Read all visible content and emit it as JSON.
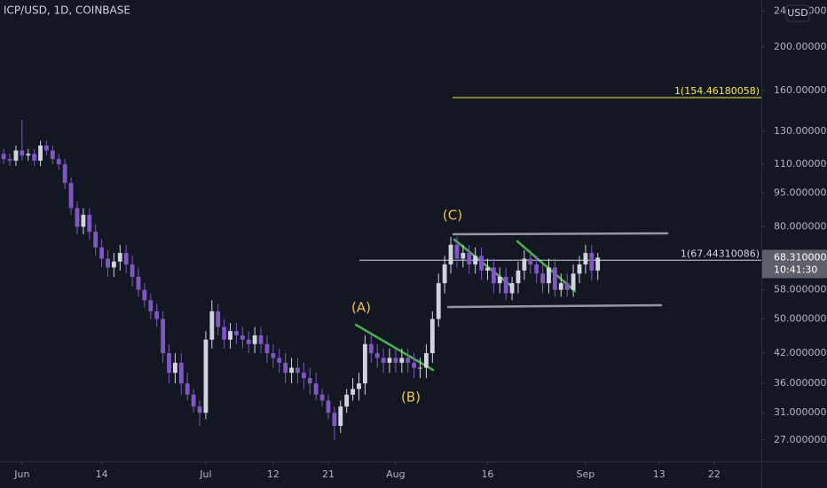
{
  "chart_data": {
    "type": "candlestick",
    "title": "ICP/USD, 1D, COINBASE",
    "currency": "USD",
    "log_scale": true,
    "up_color": "#d1d4dc",
    "down_color": "#7e57c2",
    "x": [
      -3,
      -2,
      -1,
      0,
      1,
      2,
      3,
      4,
      5,
      6,
      7,
      8,
      9,
      10,
      11,
      12,
      13,
      14,
      15,
      16,
      17,
      18,
      19,
      20,
      21,
      22,
      23,
      24,
      25,
      26,
      27,
      28,
      29,
      30,
      31,
      32,
      33,
      34,
      35,
      36,
      37,
      38,
      39,
      40,
      41,
      42,
      43,
      44,
      45,
      46,
      47,
      48,
      49,
      50,
      51,
      52,
      53,
      54,
      55,
      56,
      57,
      58,
      59,
      60,
      61,
      62,
      63,
      64,
      65,
      66,
      67,
      68,
      69,
      70,
      71,
      72,
      73,
      74,
      75,
      76,
      77,
      78,
      79,
      80,
      81,
      82,
      83,
      84,
      85,
      86,
      87,
      88,
      89,
      90,
      91,
      92,
      93,
      94
    ],
    "open": [
      116,
      113,
      112,
      118,
      115,
      116,
      112,
      121,
      118,
      113,
      110,
      100,
      88,
      80,
      85,
      78,
      72,
      68,
      65,
      67,
      70,
      66,
      62,
      58,
      55,
      52,
      50,
      42,
      38,
      40,
      36,
      34,
      32,
      31,
      45,
      52,
      48,
      45,
      47,
      46,
      45,
      44,
      46,
      44,
      42,
      41,
      40,
      38,
      39,
      38,
      37,
      36,
      34,
      33,
      31,
      29,
      32,
      34,
      35,
      36,
      44,
      42,
      41,
      40,
      41,
      40,
      41,
      40,
      39,
      39,
      42,
      50,
      60,
      66,
      73,
      68,
      70,
      66,
      69,
      64,
      65,
      60,
      62,
      57,
      60,
      64,
      68,
      66,
      63,
      60,
      65,
      58,
      60,
      58,
      63,
      66,
      70,
      64
    ],
    "high": [
      119,
      116,
      121,
      138,
      119,
      119,
      124,
      124,
      121,
      116,
      113,
      103,
      91,
      88,
      88,
      81,
      75,
      71,
      70,
      73,
      73,
      69,
      65,
      60,
      57,
      54,
      52,
      44,
      42,
      42,
      38,
      35,
      33,
      47,
      55,
      54,
      50,
      49,
      49,
      48,
      47,
      48,
      48,
      46,
      44,
      43,
      42,
      41,
      41,
      40,
      39,
      38,
      35,
      34,
      32,
      33,
      35,
      37,
      38,
      46,
      46,
      44,
      43,
      43,
      43,
      43,
      43,
      42,
      41,
      44,
      52,
      63,
      69,
      76,
      76,
      73,
      73,
      72,
      72,
      68,
      68,
      65,
      65,
      62,
      67,
      71,
      71,
      69,
      66,
      68,
      68,
      63,
      63,
      66,
      69,
      73,
      73,
      70
    ],
    "low": [
      110,
      109,
      109,
      112,
      112,
      109,
      109,
      115,
      110,
      107,
      97,
      85,
      77,
      77,
      75,
      69,
      65,
      62,
      62,
      64,
      63,
      59,
      56,
      53,
      50,
      48,
      40,
      36,
      36,
      34,
      33,
      31,
      29,
      30,
      43,
      46,
      43,
      43,
      44,
      43,
      42,
      42,
      42,
      40,
      39,
      38,
      36,
      36,
      36,
      35,
      34,
      33,
      32,
      30,
      27,
      28,
      31,
      33,
      33,
      34,
      40,
      39,
      38,
      38,
      38,
      38,
      38,
      37,
      37,
      37,
      40,
      48,
      57,
      63,
      65,
      65,
      63,
      63,
      61,
      61,
      57,
      57,
      55,
      55,
      57,
      61,
      63,
      60,
      57,
      57,
      56,
      56,
      56,
      56,
      60,
      63,
      61,
      61
    ],
    "close": [
      113,
      112,
      118,
      115,
      116,
      112,
      121,
      118,
      113,
      110,
      100,
      88,
      80,
      85,
      78,
      72,
      68,
      65,
      67,
      70,
      66,
      62,
      58,
      55,
      52,
      50,
      42,
      38,
      40,
      36,
      34,
      32,
      31,
      45,
      52,
      48,
      45,
      47,
      46,
      45,
      44,
      46,
      44,
      42,
      41,
      40,
      38,
      39,
      38,
      37,
      36,
      34,
      33,
      31,
      29,
      32,
      34,
      35,
      36,
      44,
      42,
      41,
      40,
      41,
      40,
      41,
      40,
      39,
      39,
      42,
      50,
      60,
      66,
      73,
      68,
      70,
      66,
      69,
      64,
      65,
      60,
      62,
      57,
      60,
      64,
      68,
      66,
      63,
      60,
      65,
      58,
      60,
      58,
      63,
      66,
      70,
      64,
      68.31
    ],
    "xlim": [
      -3.6,
      120.7
    ],
    "xticks": [
      {
        "value": 0,
        "label": "Jun"
      },
      {
        "value": 13,
        "label": "14"
      },
      {
        "value": 30,
        "label": "Jul"
      },
      {
        "value": 41,
        "label": "12"
      },
      {
        "value": 50,
        "label": "21"
      },
      {
        "value": 61,
        "label": "Aug"
      },
      {
        "value": 76,
        "label": "16"
      },
      {
        "value": 92,
        "label": "Sep"
      },
      {
        "value": 104,
        "label": "13"
      },
      {
        "value": 113,
        "label": "22"
      }
    ],
    "ylim": [
      24.2,
      254
    ],
    "yticks": [
      {
        "value": 240,
        "label": "240.00000000"
      },
      {
        "value": 200,
        "label": "200.00000000"
      },
      {
        "value": 160,
        "label": "160.00000000"
      },
      {
        "value": 130,
        "label": "130.00000000"
      },
      {
        "value": 110,
        "label": "110.00000000"
      },
      {
        "value": 95,
        "label": "95.00000000"
      },
      {
        "value": 80,
        "label": "80.00000000"
      },
      {
        "value": 58,
        "label": "58.00000000"
      },
      {
        "value": 50,
        "label": "50.00000000"
      },
      {
        "value": 42,
        "label": "42.00000000"
      },
      {
        "value": 36,
        "label": "36.00000000"
      },
      {
        "value": 31,
        "label": "31.00000000"
      },
      {
        "value": 27,
        "label": "27.00000000"
      }
    ],
    "last_price": {
      "value": 68.31,
      "label": "68.31000000"
    },
    "countdown": "10:41:30",
    "hlines": [
      {
        "value": 154.46180058,
        "label": "1(154.46180058)",
        "color": "#f5e94a"
      },
      {
        "value": 67.44310086,
        "label": "1(67.44310086)",
        "color": "#d1d4dc"
      }
    ],
    "annotations": [
      "(A)",
      "(B)",
      "(C)"
    ]
  }
}
